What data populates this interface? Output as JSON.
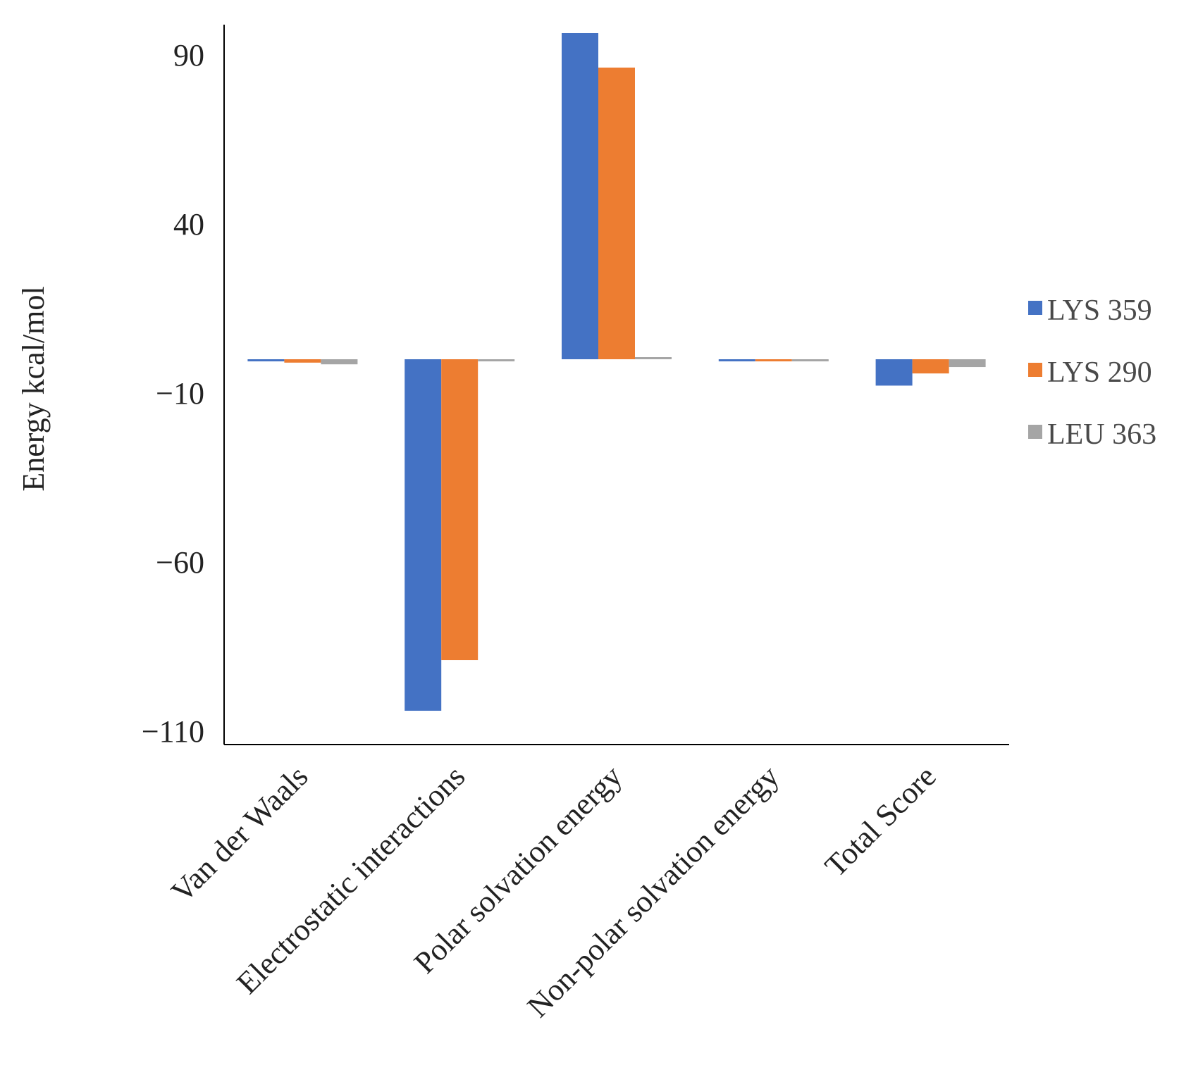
{
  "chart_data": {
    "type": "bar",
    "title": "",
    "xlabel": "",
    "ylabel": "Energy kcal/mol",
    "ylim": [
      -114,
      99
    ],
    "yticks": [
      90,
      40,
      -10,
      -60,
      -110
    ],
    "ytick_labels": [
      "90",
      "40",
      "−10",
      "−60",
      "−110"
    ],
    "categories": [
      "Van der Waals",
      "Electrostatic interactions",
      "Polar solvation energy",
      "Non-polar solvation energy",
      "Total Score"
    ],
    "series": [
      {
        "name": "LYS 359",
        "color": "#4472C4",
        "values": [
          -0.5,
          -104.0,
          96.5,
          -0.5,
          -7.8
        ]
      },
      {
        "name": "LYS 290",
        "color": "#ED7D31",
        "values": [
          -1.0,
          -89.0,
          86.3,
          -0.5,
          -4.2
        ]
      },
      {
        "name": "LEU 363",
        "color": "#A5A5A5",
        "values": [
          -1.5,
          -0.5,
          0.5,
          -0.5,
          -2.3
        ]
      }
    ],
    "legend_position": "right",
    "grid": false
  }
}
